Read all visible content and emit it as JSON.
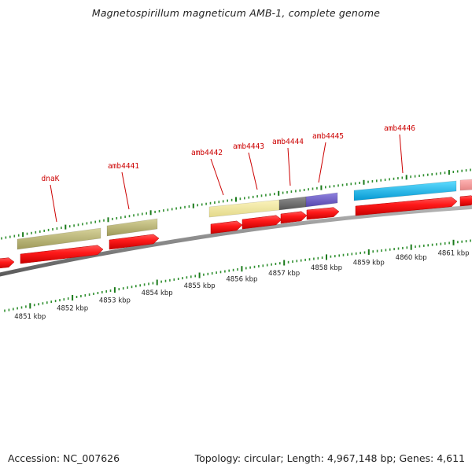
{
  "title": "Magnetospirillum magneticum AMB-1, complete genome",
  "footer": {
    "accession": "Accession: NC_007626",
    "stats": "Topology: circular; Length: 4,967,148 bp; Genes: 4,611"
  },
  "colors": {
    "backbone": "#8c8c8c",
    "cds": "#ff0000",
    "tick_major": "#1a7a1a",
    "tick_minor": "#2f8f2f",
    "label": "#cc0000"
  },
  "scale": {
    "unit": "kbp",
    "labels": [
      "4851 kbp",
      "4852 kbp",
      "4853 kbp",
      "4854 kbp",
      "4855 kbp",
      "4856 kbp",
      "4857 kbp",
      "4858 kbp",
      "4859 kbp",
      "4860 kbp",
      "4861 kbp"
    ]
  },
  "genes": [
    {
      "label": "dnaK"
    },
    {
      "label": "amb4441"
    },
    {
      "label": "amb4442"
    },
    {
      "label": "amb4443"
    },
    {
      "label": "amb4444"
    },
    {
      "label": "amb4445"
    },
    {
      "label": "amb4446"
    }
  ]
}
